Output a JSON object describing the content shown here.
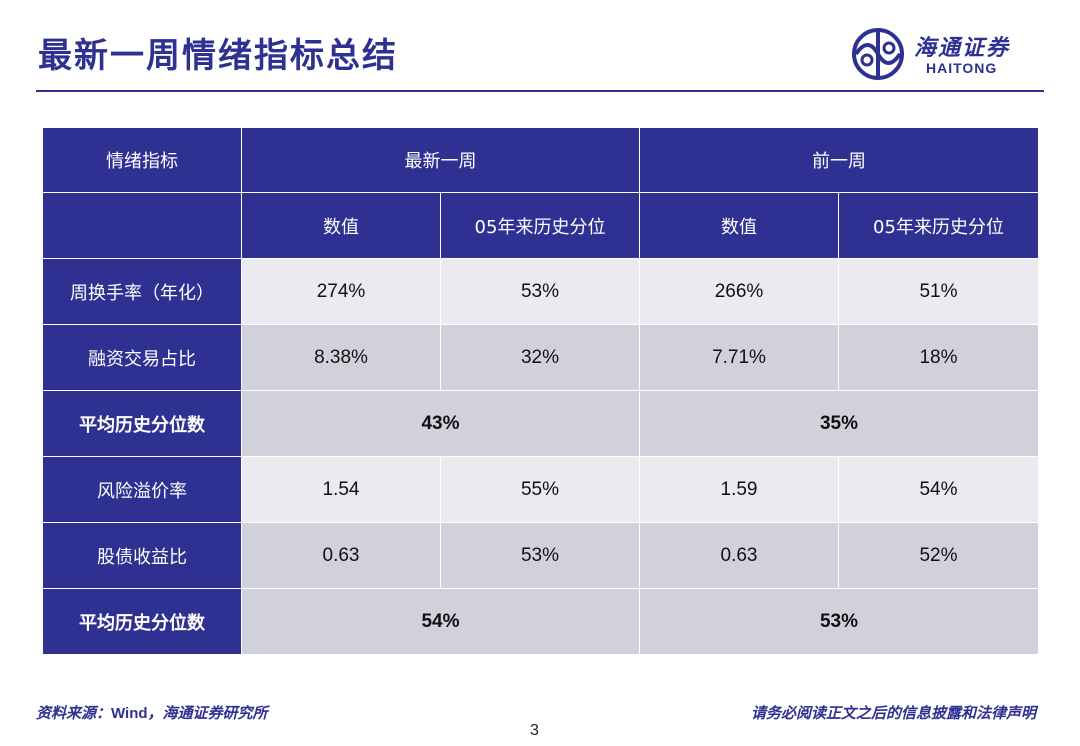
{
  "title": "最新一周情绪指标总结",
  "logo": {
    "cn": "海通证券",
    "en": "HAITONG"
  },
  "table": {
    "header": {
      "indicator": "情绪指标",
      "latest_week": "最新一周",
      "previous_week": "前一周"
    },
    "subheader": {
      "value": "数值",
      "percentile": "05年来历史分位"
    },
    "group1_rows": [
      {
        "label": "周换手率（年化）",
        "latest_value": "274%",
        "latest_pct": "53%",
        "prev_value": "266%",
        "prev_pct": "51%"
      },
      {
        "label": "融资交易占比",
        "latest_value": "8.38%",
        "latest_pct": "32%",
        "prev_value": "7.71%",
        "prev_pct": "18%"
      }
    ],
    "group1_avg": {
      "label": "平均历史分位数",
      "latest": "43%",
      "prev": "35%"
    },
    "group2_rows": [
      {
        "label": "风险溢价率",
        "latest_value": "1.54",
        "latest_pct": "55%",
        "prev_value": "1.59",
        "prev_pct": "54%"
      },
      {
        "label": "股债收益比",
        "latest_value": "0.63",
        "latest_pct": "53%",
        "prev_value": "0.63",
        "prev_pct": "52%"
      }
    ],
    "group2_avg": {
      "label": "平均历史分位数",
      "latest": "54%",
      "prev": "53%"
    }
  },
  "footer": {
    "source_prefix": "资料来源：",
    "source_wind": "Wind",
    "source_suffix": "，海通证券研究所",
    "disclaimer": "请务必阅读正文之后的信息披露和法律声明",
    "page": "3"
  },
  "colors": {
    "brand_navy": "#2e3192",
    "row_light": "#eaeaef",
    "row_dark": "#d1d1dc"
  }
}
